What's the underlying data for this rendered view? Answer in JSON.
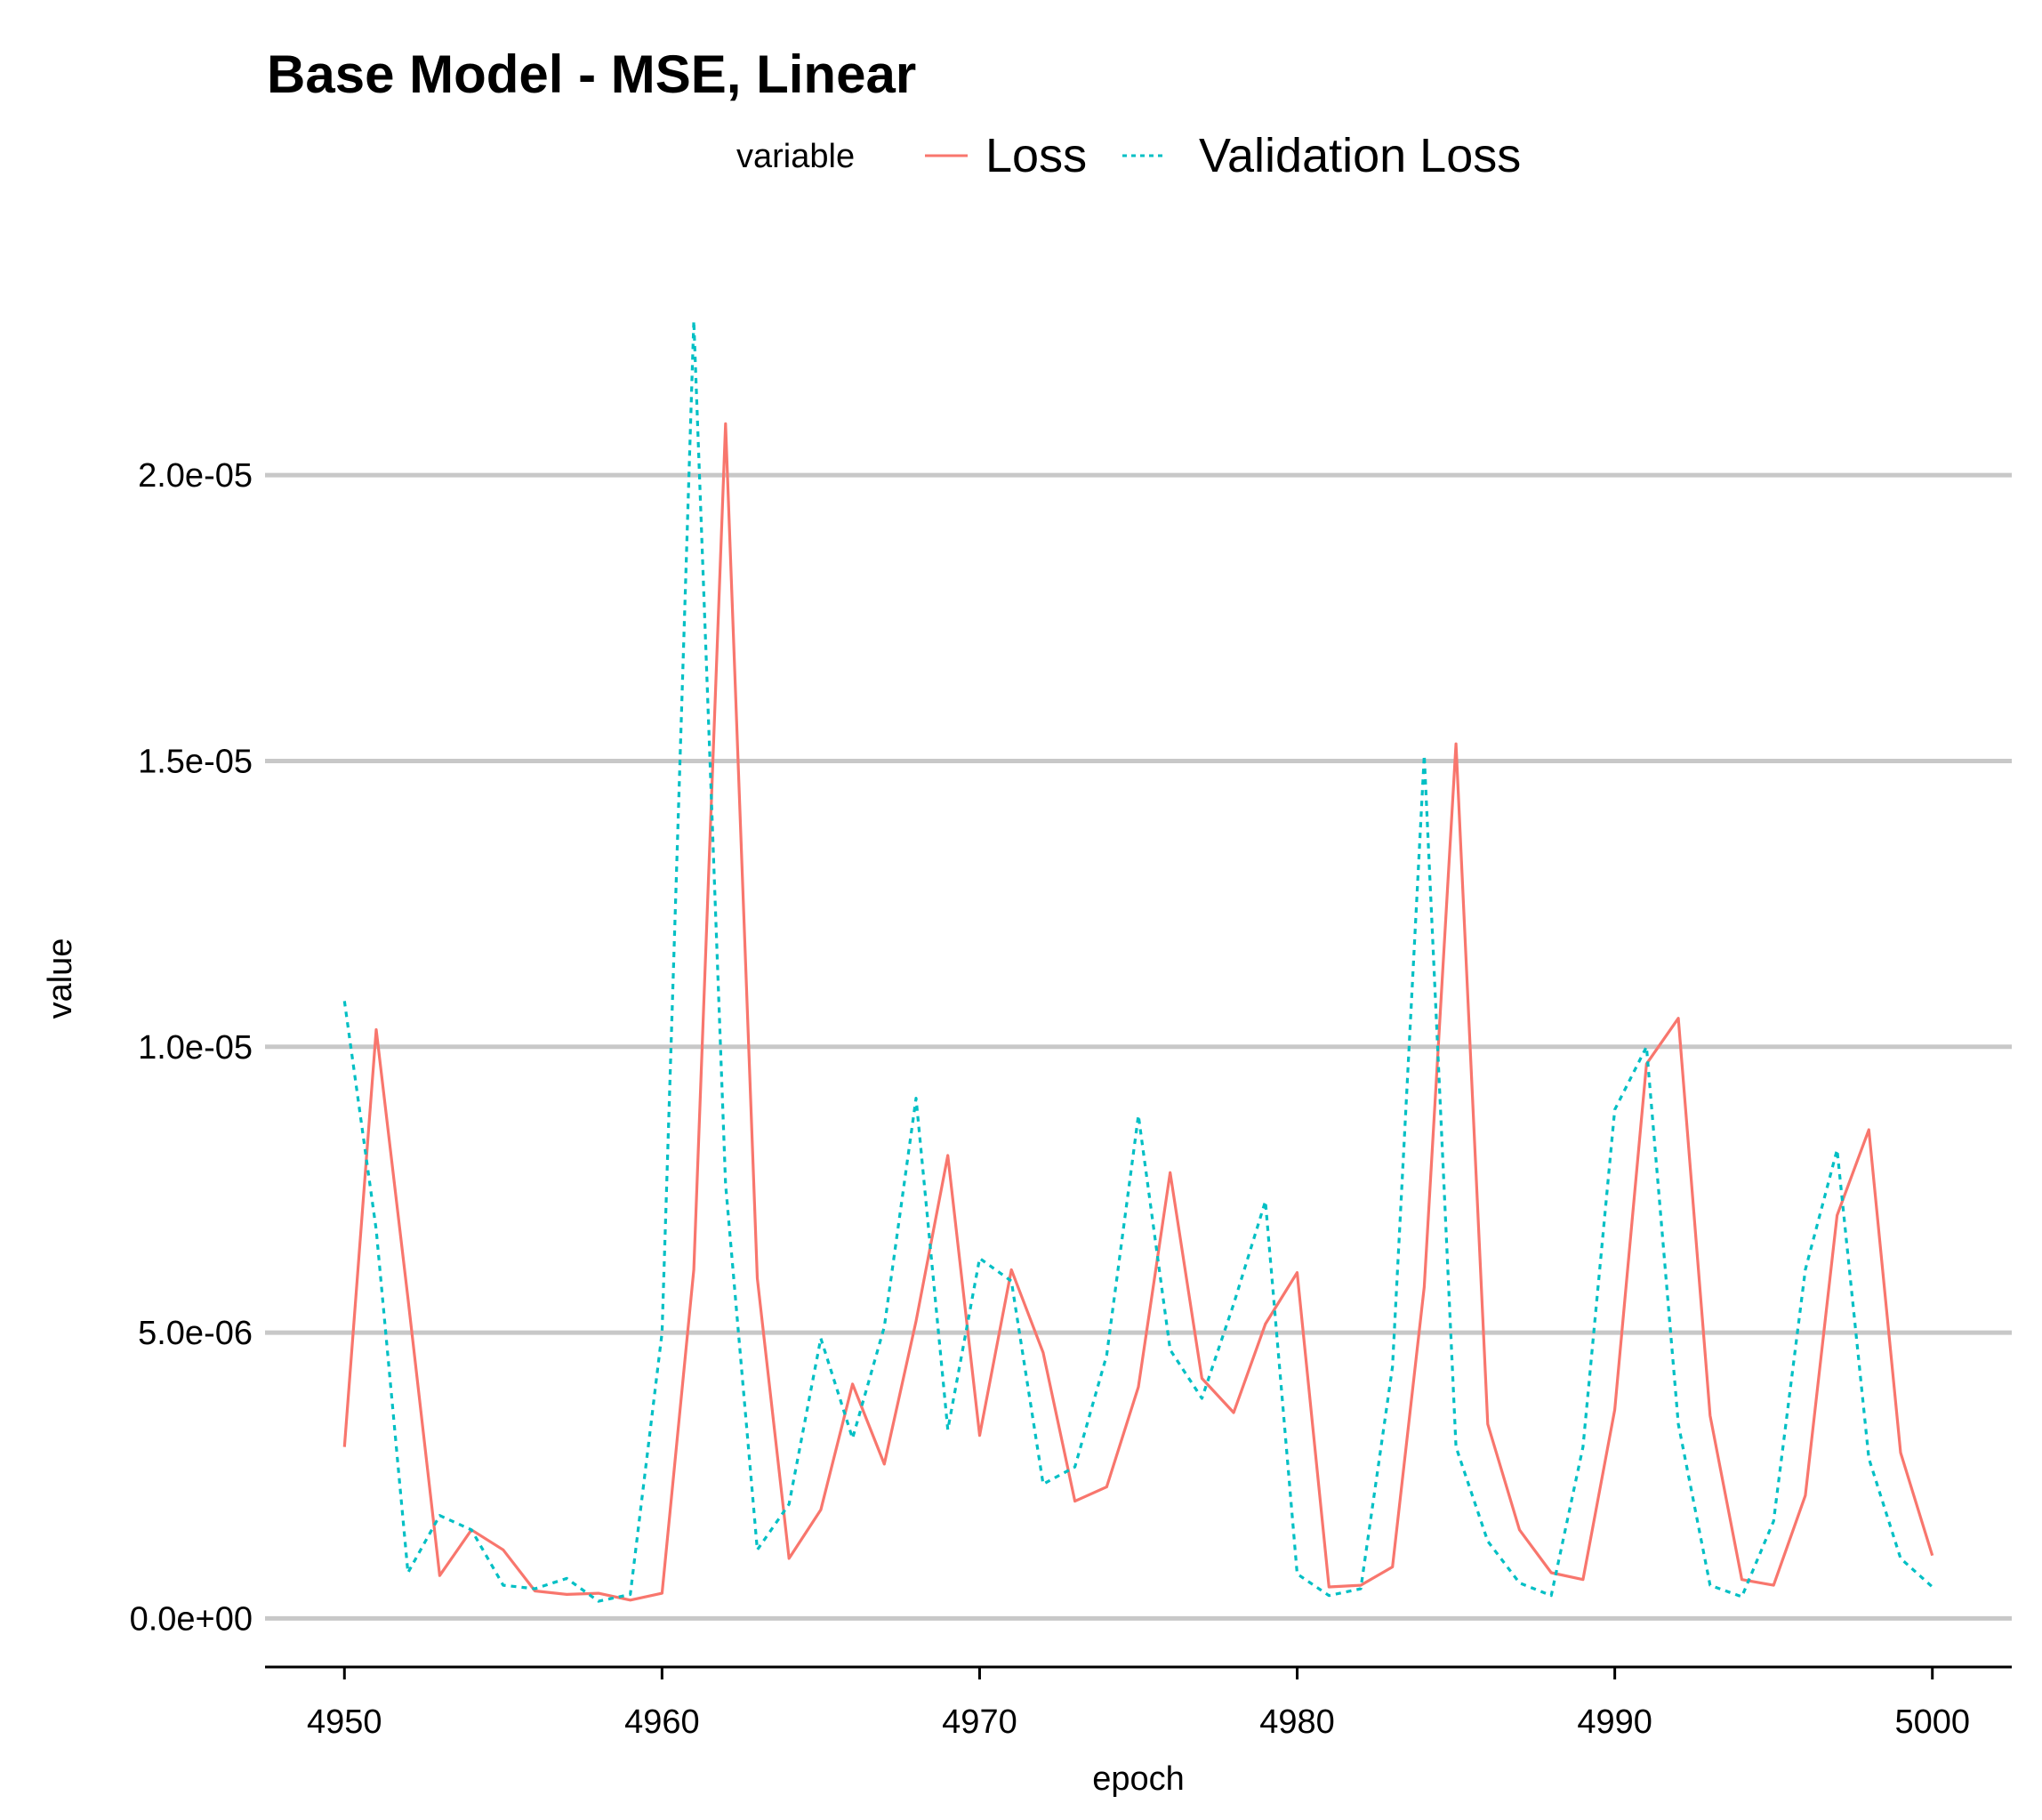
{
  "chart_data": {
    "type": "line",
    "title": "Base Model - MSE, Linear",
    "xlabel": "epoch",
    "ylabel": "value",
    "xlim": [
      4947.5,
      5002.5
    ],
    "ylim": [
      -8.5e-07,
      2.38e-05
    ],
    "x_ticks": [
      4950,
      4960,
      4970,
      4980,
      4990,
      5000
    ],
    "x_tick_labels": [
      "4950",
      "4960",
      "4970",
      "4980",
      "4990",
      "5000"
    ],
    "y_ticks": [
      0,
      5e-06,
      1e-05,
      1.5e-05,
      2e-05
    ],
    "y_tick_labels": [
      "0.0e+00",
      "5.0e-06",
      "1.0e-05",
      "1.5e-05",
      "2.0e-05"
    ],
    "grid": "horizontal",
    "legend": {
      "title": "variable",
      "position": "top"
    },
    "x": [
      4950,
      4951,
      4952,
      4953,
      4954,
      4955,
      4956,
      4957,
      4958,
      4959,
      4960,
      4961,
      4962,
      4963,
      4964,
      4965,
      4966,
      4967,
      4968,
      4969,
      4970,
      4971,
      4972,
      4973,
      4974,
      4975,
      4976,
      4977,
      4978,
      4979,
      4980,
      4981,
      4982,
      4983,
      4984,
      4985,
      4986,
      4987,
      4988,
      4989,
      4990,
      4991,
      4992,
      4993,
      4994,
      4995,
      4996,
      4997,
      4998,
      4999,
      5000
    ],
    "series": [
      {
        "name": "Loss",
        "color": "#F8766D",
        "dash": "solid",
        "values": [
          3e-06,
          1.03e-05,
          5.6e-06,
          7.5e-07,
          1.55e-06,
          1.2e-06,
          4.8e-07,
          4.2e-07,
          4.4e-07,
          3.2e-07,
          4.4e-07,
          6.1e-06,
          2.09e-05,
          5.95e-06,
          1.05e-06,
          1.9e-06,
          4.1e-06,
          2.7e-06,
          5.2e-06,
          8.1e-06,
          3.2e-06,
          6.1e-06,
          4.65e-06,
          2.05e-06,
          2.3e-06,
          4.05e-06,
          7.8e-06,
          4.2e-06,
          3.6e-06,
          5.15e-06,
          6.05e-06,
          5.5e-07,
          5.8e-07,
          9e-07,
          5.8e-06,
          1.53e-05,
          3.4e-06,
          1.55e-06,
          8e-07,
          6.8e-07,
          3.65e-06,
          9.7e-06,
          1.05e-05,
          3.55e-06,
          6.8e-07,
          5.8e-07,
          2.15e-06,
          7.05e-06,
          8.55e-06,
          2.9e-06,
          1.1e-06
        ]
      },
      {
        "name": "Validation Loss",
        "color": "#00BFC4",
        "dash": "dotted",
        "values": [
          1.08e-05,
          6.8e-06,
          8e-07,
          1.8e-06,
          1.55e-06,
          5.8e-07,
          5.2e-07,
          7e-07,
          3e-07,
          4.2e-07,
          5e-06,
          2.27e-05,
          7.6e-06,
          1.2e-06,
          2e-06,
          4.9e-06,
          3.15e-06,
          5.1e-06,
          9.1e-06,
          3.3e-06,
          6.3e-06,
          5.9e-06,
          2.35e-06,
          2.65e-06,
          4.6e-06,
          8.8e-06,
          4.7e-06,
          3.85e-06,
          5.5e-06,
          7.3e-06,
          7.8e-07,
          4e-07,
          5.2e-07,
          4.4e-06,
          1.51e-05,
          3e-06,
          1.35e-06,
          6.2e-07,
          4e-07,
          3e-06,
          8.9e-06,
          1e-05,
          3.4e-06,
          5.8e-07,
          3.8e-07,
          1.7e-06,
          6.1e-06,
          8.2e-06,
          2.8e-06,
          1.05e-06,
          5.5e-07
        ]
      }
    ]
  }
}
